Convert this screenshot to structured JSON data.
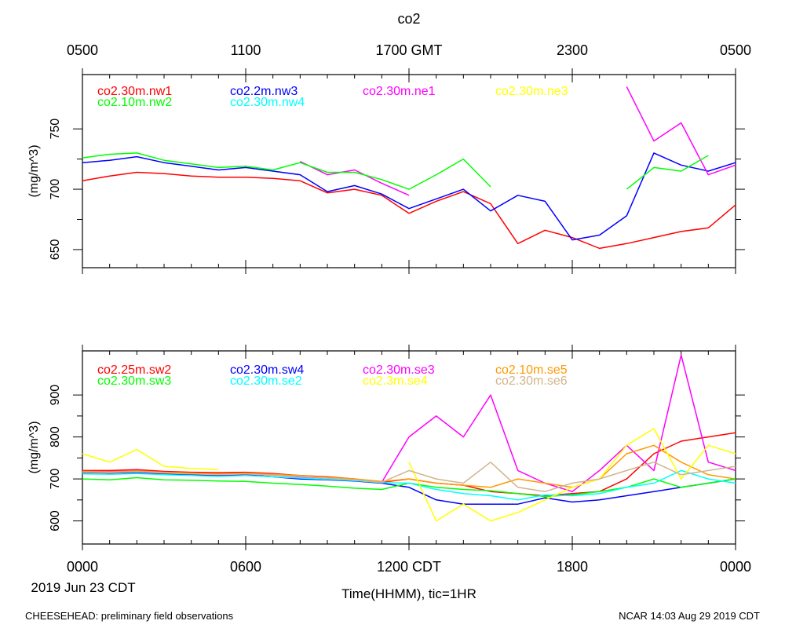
{
  "chart_data": [
    {
      "type": "line",
      "title": "co2",
      "top_axis_ticks": [
        "0500",
        "1100",
        "1700 GMT",
        "2300",
        "0500"
      ],
      "xlabel": "",
      "ylabel": "(mg/m^3)",
      "ylim": [
        635,
        795
      ],
      "yticks": [
        650,
        700,
        750
      ],
      "legend_location": "top-left",
      "x": [
        0,
        1,
        2,
        3,
        4,
        5,
        6,
        7,
        8,
        9,
        10,
        11,
        12,
        13,
        14,
        15,
        16,
        17,
        18,
        19,
        20,
        21,
        22,
        23,
        24
      ],
      "series": [
        {
          "name": "co2.30m.nw1",
          "color": "#ff0000",
          "values": [
            707,
            711,
            714,
            713,
            711,
            710,
            710,
            709,
            707,
            697,
            700,
            695,
            680,
            690,
            698,
            688,
            655,
            666,
            660,
            651,
            655,
            660,
            665,
            668,
            687
          ]
        },
        {
          "name": "co2.2m.nw3",
          "color": "#0000ff",
          "values": [
            722,
            724,
            727,
            722,
            719,
            716,
            718,
            715,
            712,
            698,
            703,
            696,
            684,
            692,
            700,
            682,
            695,
            690,
            658,
            662,
            678,
            730,
            720,
            715,
            722
          ]
        },
        {
          "name": "co2.30m.ne1",
          "color": "#ff00ff",
          "values": [
            null,
            null,
            null,
            null,
            null,
            null,
            null,
            null,
            723,
            712,
            716,
            705,
            695,
            null,
            null,
            null,
            null,
            null,
            null,
            null,
            785,
            740,
            755,
            712,
            720
          ]
        },
        {
          "name": "co2.30m.ne3",
          "color": "#ffff00",
          "values": [
            null,
            null,
            null,
            null,
            null,
            null,
            null,
            null,
            null,
            null,
            null,
            null,
            null,
            null,
            null,
            null,
            null,
            null,
            null,
            null,
            null,
            null,
            null,
            null,
            null
          ]
        },
        {
          "name": "co2.10m.nw2",
          "color": "#00ff00",
          "values": [
            726,
            729,
            730,
            724,
            721,
            718,
            719,
            716,
            722,
            714,
            714,
            708,
            700,
            712,
            725,
            702,
            null,
            null,
            null,
            null,
            700,
            718,
            715,
            728,
            null
          ]
        },
        {
          "name": "co2.30m.nw4",
          "color": "#00ffff",
          "values": [
            null,
            null,
            null,
            null,
            null,
            null,
            null,
            null,
            null,
            null,
            null,
            null,
            null,
            null,
            null,
            null,
            null,
            null,
            null,
            null,
            null,
            null,
            null,
            null,
            null
          ]
        }
      ]
    },
    {
      "type": "line",
      "title": "",
      "xlabel": "Time(HHMM), tic=1HR",
      "ylabel": "(mg/m^3)",
      "ylim": [
        545,
        1005
      ],
      "yticks": [
        600,
        700,
        800,
        900
      ],
      "x_ticks": [
        "0000",
        "0600",
        "1200 CDT",
        "1800",
        "0000"
      ],
      "date_label": "2019 Jun 23 CDT",
      "legend_location": "top-left",
      "x": [
        0,
        1,
        2,
        3,
        4,
        5,
        6,
        7,
        8,
        9,
        10,
        11,
        12,
        13,
        14,
        15,
        16,
        17,
        18,
        19,
        20,
        21,
        22,
        23,
        24
      ],
      "series": [
        {
          "name": "co2.25m.sw2",
          "color": "#ff0000",
          "values": [
            720,
            720,
            722,
            718,
            716,
            715,
            716,
            713,
            708,
            705,
            700,
            692,
            700,
            690,
            685,
            670,
            665,
            660,
            665,
            670,
            700,
            760,
            790,
            800,
            810
          ]
        },
        {
          "name": "co2.30m.sw4",
          "color": "#0000ff",
          "values": [
            715,
            714,
            715,
            712,
            710,
            708,
            710,
            705,
            700,
            698,
            695,
            690,
            680,
            650,
            640,
            640,
            640,
            655,
            645,
            650,
            660,
            670,
            680,
            690,
            700
          ]
        },
        {
          "name": "co2.30m.se3",
          "color": "#ff00ff",
          "values": [
            718,
            718,
            720,
            716,
            713,
            711,
            712,
            709,
            705,
            702,
            698,
            692,
            800,
            850,
            800,
            900,
            720,
            690,
            670,
            720,
            780,
            720,
            995,
            740,
            720
          ]
        },
        {
          "name": "co2.10m.se5",
          "color": "#ff9900",
          "values": [
            718,
            717,
            719,
            716,
            714,
            712,
            714,
            711,
            708,
            704,
            700,
            694,
            700,
            690,
            685,
            680,
            700,
            690,
            680,
            700,
            760,
            780,
            740,
            710,
            700
          ]
        },
        {
          "name": "co2.30m.sw3",
          "color": "#00ff00",
          "values": [
            700,
            698,
            703,
            698,
            697,
            695,
            694,
            690,
            687,
            683,
            678,
            675,
            690,
            680,
            675,
            672,
            665,
            658,
            662,
            670,
            680,
            700,
            680,
            690,
            700
          ]
        },
        {
          "name": "co2.30m.se2",
          "color": "#00ffff",
          "values": [
            712,
            711,
            713,
            710,
            708,
            706,
            708,
            705,
            702,
            699,
            696,
            691,
            690,
            675,
            665,
            660,
            650,
            662,
            660,
            665,
            680,
            690,
            720,
            700,
            690
          ]
        },
        {
          "name": "co2.3m.se4",
          "color": "#ffff00",
          "values": [
            760,
            740,
            770,
            730,
            725,
            722,
            null,
            null,
            null,
            null,
            null,
            null,
            740,
            600,
            640,
            600,
            620,
            650,
            680,
            700,
            780,
            820,
            700,
            780,
            760
          ]
        },
        {
          "name": "co2.30m.se6",
          "color": "#d2b48c",
          "values": [
            716,
            715,
            717,
            714,
            712,
            710,
            712,
            709,
            706,
            702,
            698,
            692,
            720,
            700,
            690,
            740,
            680,
            670,
            690,
            700,
            720,
            740,
            710,
            720,
            730
          ]
        }
      ]
    }
  ],
  "footer": {
    "left": "CHEESEHEAD: preliminary field observations",
    "right": "NCAR 14:03 Aug 29 2019 CDT"
  }
}
